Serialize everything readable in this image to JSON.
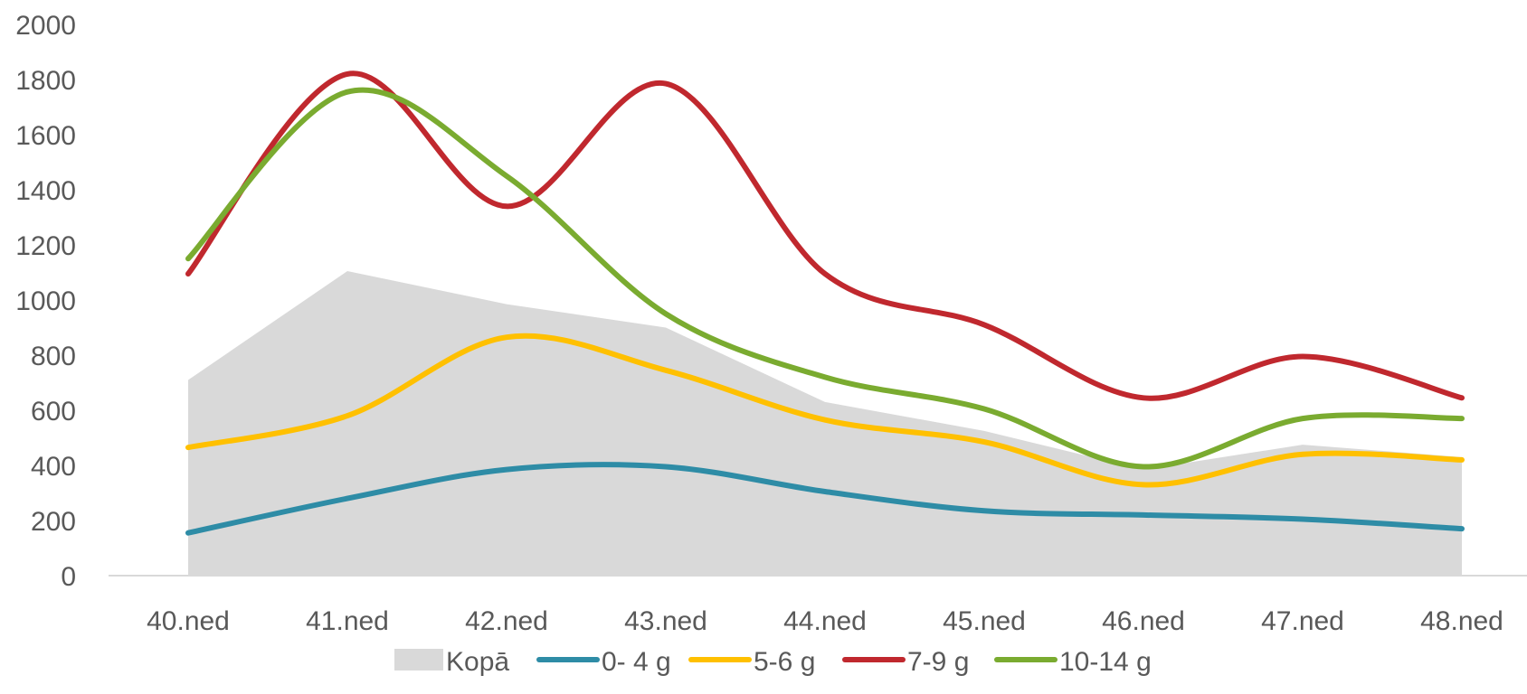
{
  "chart_data": {
    "type": "line",
    "title": "",
    "xlabel": "",
    "ylabel": "",
    "categories": [
      "40.ned",
      "41.ned",
      "42.ned",
      "43.ned",
      "44.ned",
      "45.ned",
      "46.ned",
      "47.ned",
      "48.ned"
    ],
    "ylim": [
      0,
      2000
    ],
    "yticks": [
      0,
      200,
      400,
      600,
      800,
      1000,
      1200,
      1400,
      1600,
      1800,
      2000
    ],
    "grid": false,
    "legend_position": "bottom",
    "series": [
      {
        "name": "Kopā",
        "kind": "area",
        "color": "#d9d9d9",
        "values": [
          710,
          1105,
          985,
          900,
          630,
          525,
          385,
          475,
          430
        ]
      },
      {
        "name": "0- 4 g",
        "kind": "line",
        "color": "#2e8ca6",
        "values": [
          155,
          280,
          385,
          395,
          305,
          235,
          220,
          205,
          170
        ]
      },
      {
        "name": "5-6 g",
        "kind": "line",
        "color": "#ffc000",
        "values": [
          465,
          580,
          865,
          745,
          565,
          485,
          330,
          440,
          420
        ]
      },
      {
        "name": "7-9 g",
        "kind": "line",
        "color": "#c0282e",
        "values": [
          1095,
          1820,
          1340,
          1785,
          1095,
          910,
          645,
          795,
          645
        ]
      },
      {
        "name": "10-14 g",
        "kind": "line",
        "color": "#7aab30",
        "values": [
          1150,
          1755,
          1450,
          950,
          720,
          605,
          395,
          570,
          570
        ]
      }
    ]
  }
}
